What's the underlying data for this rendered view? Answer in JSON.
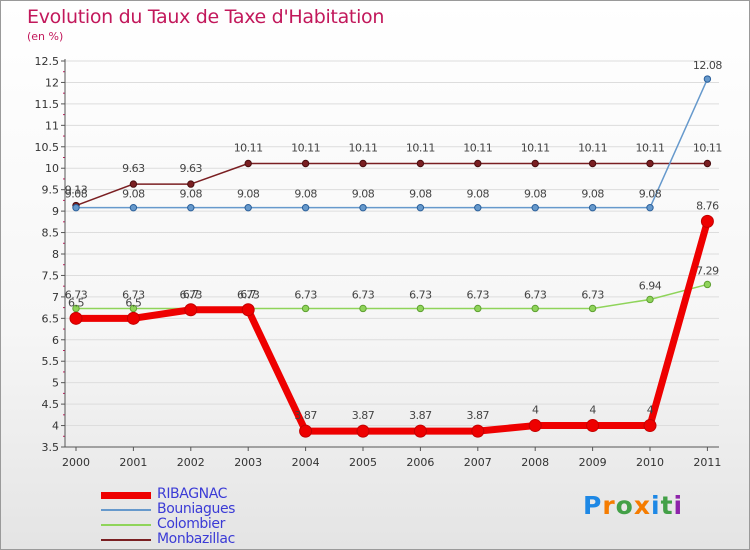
{
  "chart_data": {
    "type": "line",
    "title": "Evolution du Taux de Taxe d'Habitation",
    "ylabel": "(en %)",
    "xlabel": "",
    "ylim": [
      3.5,
      12.5
    ],
    "yticks": [
      "3.5",
      "4",
      "4.5",
      "5",
      "5.5",
      "6",
      "6.5",
      "7",
      "7.5",
      "8",
      "8.5",
      "9",
      "9.5",
      "10",
      "10.5",
      "11",
      "11.5",
      "12",
      "12.5"
    ],
    "categories": [
      "2000",
      "2001",
      "2002",
      "2003",
      "2004",
      "2005",
      "2006",
      "2007",
      "2008",
      "2009",
      "2010",
      "2011"
    ],
    "grid": "horizontal",
    "legend_position": "bottom-left",
    "series": [
      {
        "name": "Monbazillac",
        "color": "#7a1f22",
        "values": [
          9.13,
          9.63,
          9.63,
          10.11,
          10.11,
          10.11,
          10.11,
          10.11,
          10.11,
          10.11,
          10.11,
          10.11
        ],
        "labels": [
          "9.13",
          "9.63",
          "9.63",
          "10.11",
          "10.11",
          "10.11",
          "10.11",
          "10.11",
          "10.11",
          "10.11",
          "10.11",
          "10.11"
        ]
      },
      {
        "name": "Bouniagues",
        "color": "#6699cc",
        "values": [
          9.08,
          9.08,
          9.08,
          9.08,
          9.08,
          9.08,
          9.08,
          9.08,
          9.08,
          9.08,
          9.08,
          12.08
        ],
        "labels": [
          "9.08",
          "9.08",
          "9.08",
          "9.08",
          "9.08",
          "9.08",
          "9.08",
          "9.08",
          "9.08",
          "9.08",
          "9.08",
          "12.08"
        ]
      },
      {
        "name": "Colombier",
        "color": "#8fd45a",
        "values": [
          6.73,
          6.73,
          6.73,
          6.73,
          6.73,
          6.73,
          6.73,
          6.73,
          6.73,
          6.73,
          6.94,
          7.29
        ],
        "labels": [
          "6.73",
          "6.73",
          "6.73",
          "6.73",
          "6.73",
          "6.73",
          "6.73",
          "6.73",
          "6.73",
          "6.73",
          "6.94",
          "7.29"
        ]
      },
      {
        "name": "RIBAGNAC",
        "color": "#ee0000",
        "values": [
          6.5,
          6.5,
          6.7,
          6.7,
          3.87,
          3.87,
          3.87,
          3.87,
          4,
          4,
          4,
          8.76
        ],
        "labels": [
          "6.5",
          "6.5",
          "6.7",
          "6.7",
          "3.87",
          "3.87",
          "3.87",
          "3.87",
          "4",
          "4",
          "4",
          "8.76"
        ]
      }
    ],
    "legend": [
      "RIBAGNAC",
      "Bouniagues",
      "Colombier",
      "Monbazillac"
    ]
  },
  "logo": {
    "text": "Proxiti",
    "colors": [
      "#1e88e5",
      "#f57c00",
      "#43a047",
      "#f57c00",
      "#1e88e5",
      "#43a047",
      "#8e24aa"
    ]
  }
}
